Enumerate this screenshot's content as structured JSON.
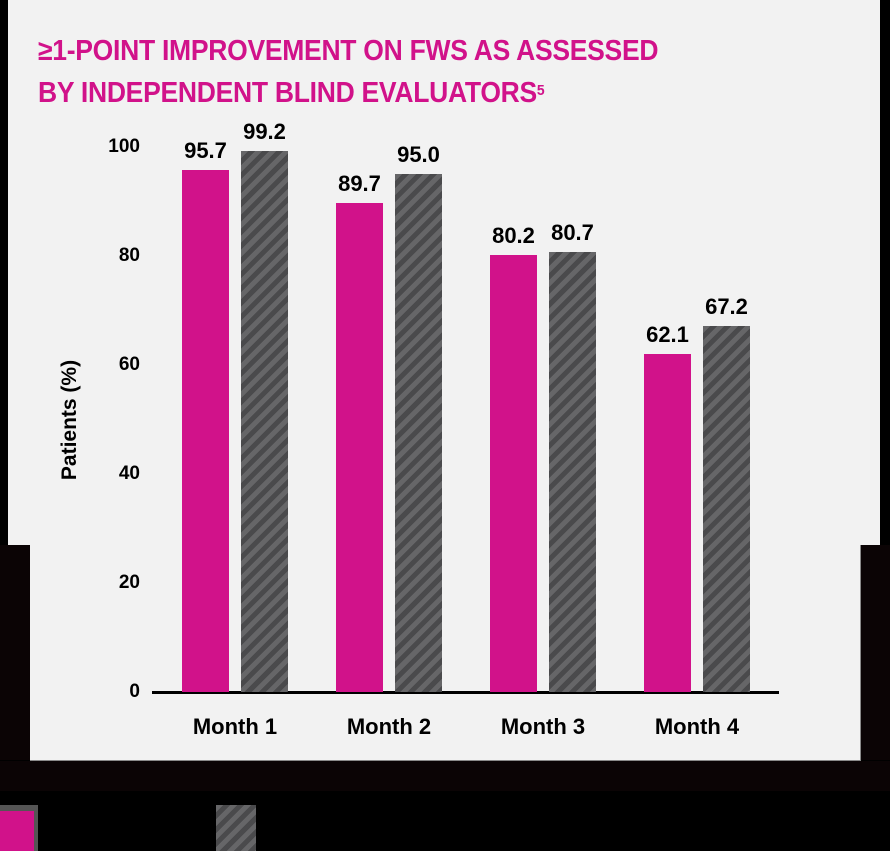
{
  "title": {
    "text": "≥1-POINT IMPROVEMENT ON FWS AS ASSESSED BY INDEPENDENT BLIND EVALUATORS",
    "line1": "≥1-POINT IMPROVEMENT ON FWS AS ASSESSED",
    "line2": "BY INDEPENDENT BLIND EVALUATORS",
    "superscript": "5"
  },
  "colors": {
    "series_a": "#d1128a",
    "series_b_stripe_dark": "#4a4a4c",
    "series_b_stripe_light": "#666668",
    "panel_bg": "#f2f2f2",
    "page_bg": "#000000",
    "title": "#d1128a"
  },
  "legend": {
    "items": [
      {
        "swatch": "solid-magenta",
        "label": ""
      },
      {
        "swatch": "gray-striped",
        "label": ""
      }
    ]
  },
  "chart_data": {
    "type": "bar",
    "title": "≥1-POINT IMPROVEMENT ON FWS AS ASSESSED BY INDEPENDENT BLIND EVALUATORS",
    "xlabel": "",
    "ylabel": "Patients (%)",
    "ylim": [
      0,
      100
    ],
    "yticks": [
      0,
      20,
      40,
      60,
      80,
      100
    ],
    "ytick_labels": [
      "0",
      "20",
      "40",
      "60",
      "80",
      "100"
    ],
    "categories": [
      "Month 1",
      "Month 2",
      "Month 3",
      "Month 4"
    ],
    "series": [
      {
        "name": "Series A (solid magenta)",
        "values": [
          95.7,
          89.7,
          80.2,
          62.1
        ],
        "labels": [
          "95.7",
          "89.7",
          "80.2",
          "62.1"
        ]
      },
      {
        "name": "Series B (gray striped)",
        "values": [
          99.2,
          95.0,
          80.7,
          67.2
        ],
        "labels": [
          "99.2",
          "95.0",
          "80.7",
          "67.2"
        ]
      }
    ],
    "grid": false,
    "legend_position": "bottom-left"
  }
}
